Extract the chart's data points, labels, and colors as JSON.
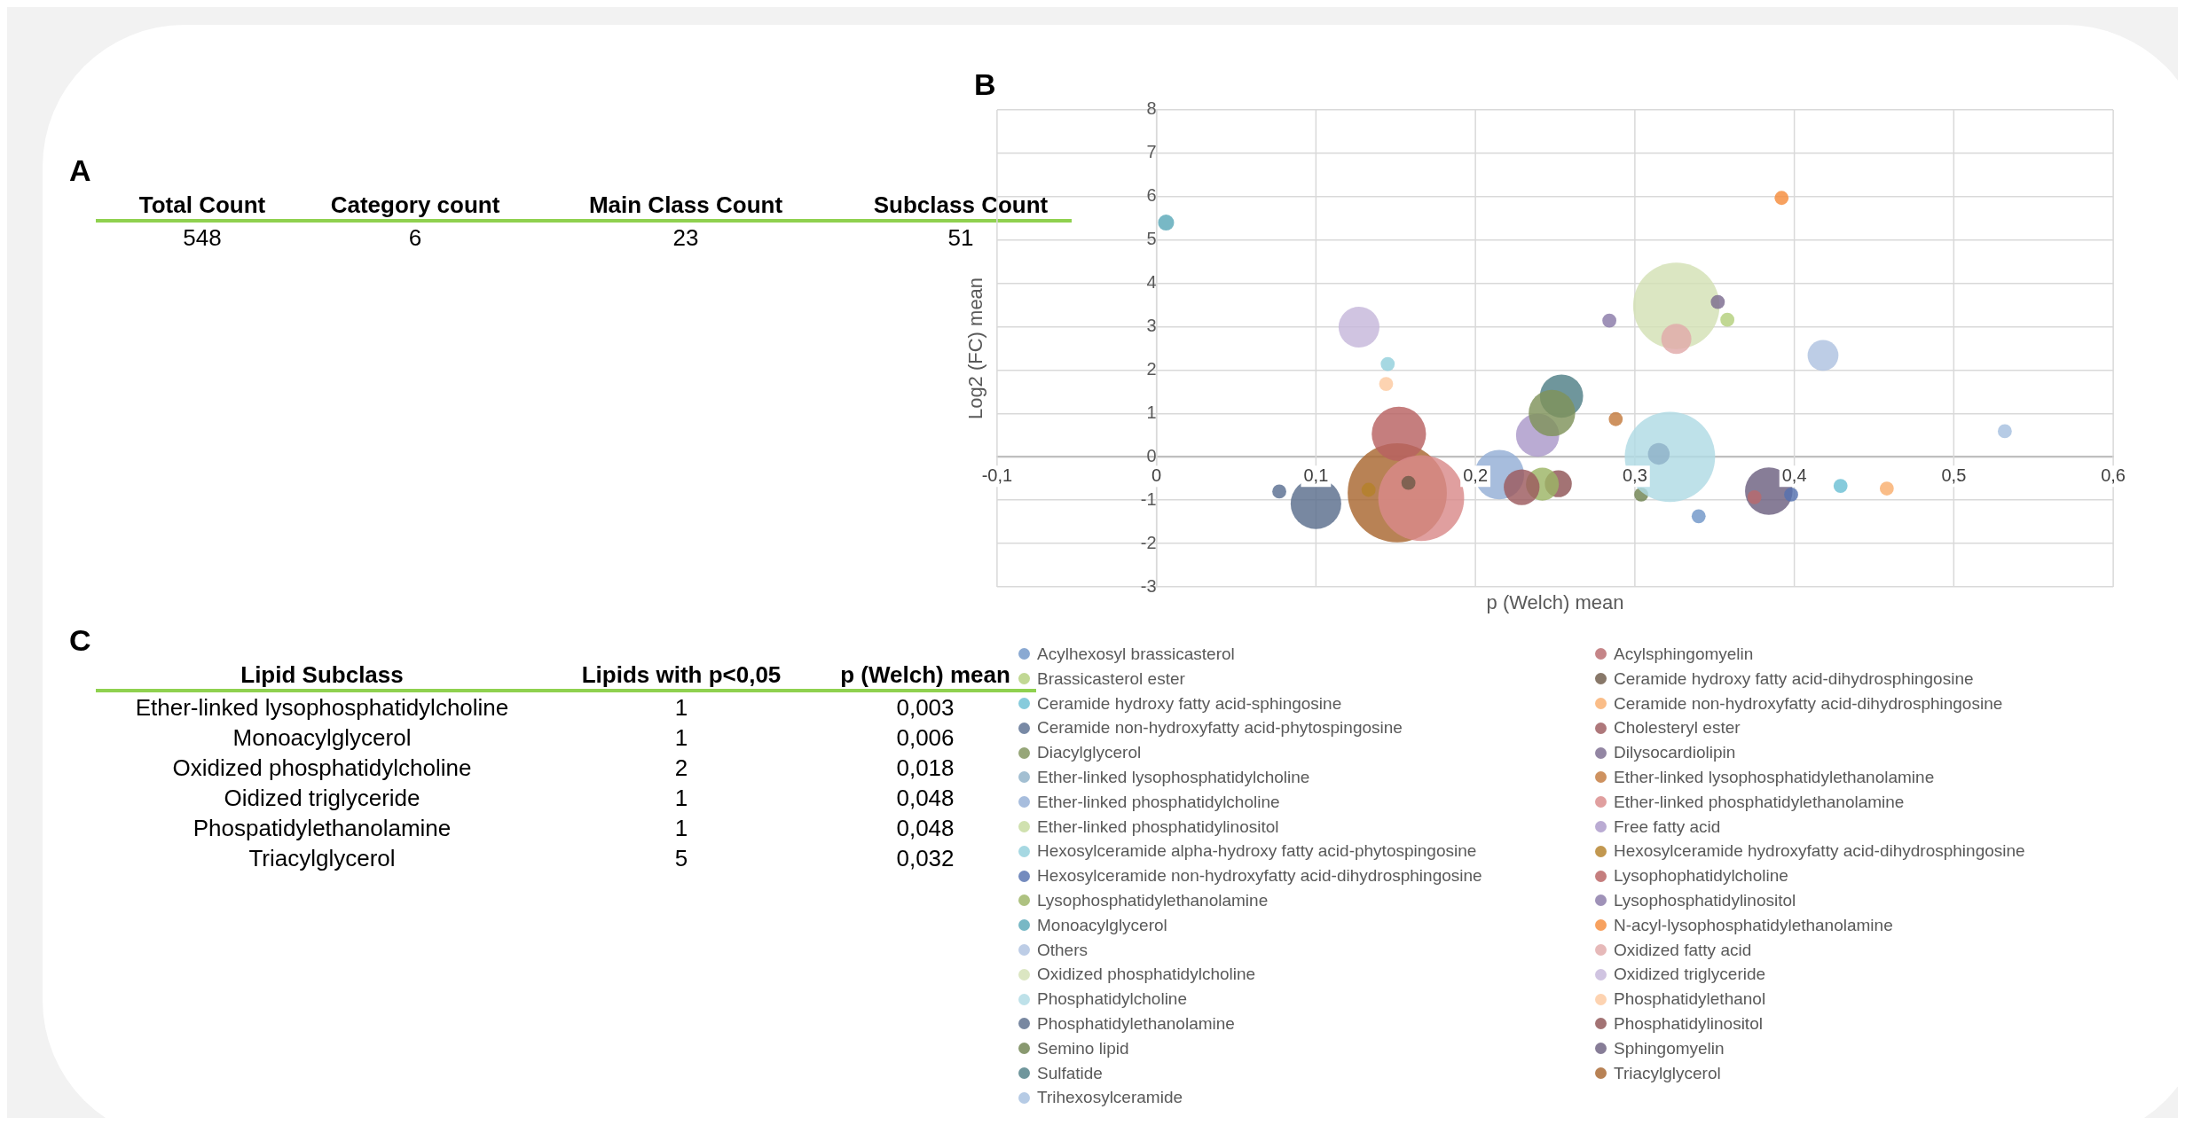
{
  "chart_data": [
    {
      "type": "other",
      "title": "A",
      "categories": [
        "Total Count",
        "Category count",
        "Main Class Count",
        "Subclass Count"
      ],
      "cell_labels": [
        [
          "548",
          "6",
          "23",
          "51"
        ]
      ]
    },
    {
      "type": "bubble",
      "title": "B",
      "xlabel": "p (Welch) mean",
      "ylabel": "Log2 (FC) mean",
      "xlim": [
        -0.1,
        0.6
      ],
      "xticks": [
        {
          "value": -0.1,
          "label": "-0,1"
        },
        0,
        {
          "value": 0.1,
          "label": "0,1"
        },
        {
          "value": 0.2,
          "label": "0,2"
        },
        {
          "value": 0.3,
          "label": "0,3"
        },
        {
          "value": 0.4,
          "label": "0,4"
        },
        {
          "value": 0.5,
          "label": "0,5"
        },
        {
          "value": 0.6,
          "label": "0,6"
        }
      ],
      "ylim": [
        -3,
        8
      ],
      "yticks": [
        -3,
        -2,
        -1,
        0,
        1,
        2,
        3,
        4,
        5,
        6,
        7,
        8
      ],
      "grid": true,
      "legend": "bottom",
      "series": [
        {
          "name": "Acylhexosyl brassicasterol",
          "color": "#7096c8",
          "x": [
            0.34
          ],
          "values": [
            -1.37
          ],
          "sizes": [
            0.02
          ]
        },
        {
          "name": "Acylsphingomyelin",
          "color": "#b86a6e",
          "x": [
            0.375
          ],
          "values": [
            -0.93
          ],
          "sizes": [
            0.02
          ]
        },
        {
          "name": "Brassicasterol ester",
          "color": "#b3cf7c",
          "x": [
            0.358
          ],
          "values": [
            3.16
          ],
          "sizes": [
            0.02
          ]
        },
        {
          "name": "Ceramide hydroxy fatty acid-dihydrosphingosine",
          "color": "#6e5a48",
          "x": [
            0.158
          ],
          "values": [
            -0.6
          ],
          "sizes": [
            0.02
          ]
        },
        {
          "name": "Ceramide hydroxy fatty acid-sphingosine",
          "color": "#6bc0d4",
          "x": [
            0.429
          ],
          "values": [
            -0.67
          ],
          "sizes": [
            0.02
          ]
        },
        {
          "name": "Ceramide non-hydroxyfatty acid-dihydrosphingosine",
          "color": "#f9ae6e",
          "x": [
            0.458
          ],
          "values": [
            -0.73
          ],
          "sizes": [
            0.02
          ]
        },
        {
          "name": "Ceramide non-hydroxyfatty acid-phytospingosine",
          "color": "#5a6f91",
          "x": [
            0.077
          ],
          "values": [
            -0.8
          ],
          "sizes": [
            0.02
          ]
        },
        {
          "name": "Cholesteryl ester",
          "color": "#9c5a5e",
          "x": [
            0.229
          ],
          "values": [
            -0.7
          ],
          "sizes": [
            0.13
          ]
        },
        {
          "name": "Diacylglycerol",
          "color": "#7f925a",
          "x": [
            0.248
          ],
          "values": [
            1.01
          ],
          "sizes": [
            0.22
          ]
        },
        {
          "name": "Dilysocardiolipin",
          "color": "#7b6b8f",
          "x": [
            0.352
          ],
          "values": [
            3.57
          ],
          "sizes": [
            0.02
          ]
        },
        {
          "name": "Ether-linked lysophosphatidylcholine",
          "color": "#8fb1c8",
          "x": [
            0.315
          ],
          "values": [
            0.07
          ],
          "sizes": [
            0.048
          ]
        },
        {
          "name": "Ether-linked lysophosphatidylethanolamine",
          "color": "#c37a3d",
          "x": [
            0.288
          ],
          "values": [
            0.87
          ],
          "sizes": [
            0.02
          ]
        },
        {
          "name": "Ether-linked phosphatidylcholine",
          "color": "#94afd6",
          "x": [
            0.215
          ],
          "values": [
            -0.41
          ],
          "sizes": [
            0.25
          ]
        },
        {
          "name": "Ether-linked phosphatidylethanolamine",
          "color": "#d98a8a",
          "x": [
            0.166
          ],
          "values": [
            -0.95
          ],
          "sizes": [
            0.75
          ]
        },
        {
          "name": "Ether-linked phosphatidylinositol",
          "color": "#c6da9d",
          "x": [
            null
          ],
          "values": [
            null
          ],
          "sizes": [
            null
          ]
        },
        {
          "name": "Free fatty acid",
          "color": "#ab99c9",
          "x": [
            0.239
          ],
          "values": [
            0.5
          ],
          "sizes": [
            0.19
          ]
        },
        {
          "name": "Hexosylceramide alpha-hydroxy fatty acid-phytospingosine",
          "color": "#92d0dc",
          "x": [
            0.145
          ],
          "values": [
            2.14
          ],
          "sizes": [
            0.02
          ]
        },
        {
          "name": "Hexosylceramide hydroxyfatty acid-dihydrosphingosine",
          "color": "#b5812a",
          "x": [
            0.133
          ],
          "values": [
            -0.76
          ],
          "sizes": [
            0.02
          ]
        },
        {
          "name": "Hexosylceramide non-hydroxyfatty acid-dihydrosphingosine",
          "color": "#5571b0",
          "x": [
            0.398
          ],
          "values": [
            -0.87
          ],
          "sizes": [
            0.02
          ]
        },
        {
          "name": "Lysophophatidylcholine",
          "color": "#b86161",
          "x": [
            0.152
          ],
          "values": [
            0.53
          ],
          "sizes": [
            0.3
          ]
        },
        {
          "name": "Lysophosphatidylethanolamine",
          "color": "#9cb565",
          "x": [
            0.242
          ],
          "values": [
            -0.63
          ],
          "sizes": [
            0.11
          ]
        },
        {
          "name": "Lysophosphatidylinositol",
          "color": "#8a7aa8",
          "x": [
            0.284
          ],
          "values": [
            3.14
          ],
          "sizes": [
            0.02
          ]
        },
        {
          "name": "Monoacylglycerol",
          "color": "#5aa8b8",
          "x": [
            0.006
          ],
          "values": [
            5.4
          ],
          "sizes": [
            0.026
          ]
        },
        {
          "name": "N-acyl-lysophosphatidylethanolamine",
          "color": "#f58c3c",
          "x": [
            0.392
          ],
          "values": [
            5.97
          ],
          "sizes": [
            0.02
          ]
        },
        {
          "name": "Others",
          "color": "#aec2e0",
          "x": [
            0.418
          ],
          "values": [
            2.34
          ],
          "sizes": [
            0.097
          ]
        },
        {
          "name": "Oxidized fatty acid",
          "color": "#e1aaaa",
          "x": [
            0.326
          ],
          "values": [
            2.72
          ],
          "sizes": [
            0.092
          ]
        },
        {
          "name": "Oxidized phosphatidylcholine",
          "color": "#d3e1b4",
          "x": [
            0.326
          ],
          "values": [
            3.48
          ],
          "sizes": [
            0.76
          ]
        },
        {
          "name": "Oxidized triglyceride",
          "color": "#c6b7da",
          "x": [
            0.127
          ],
          "values": [
            2.99
          ],
          "sizes": [
            0.17
          ]
        },
        {
          "name": "Phosphatidylcholine",
          "color": "#b0dbe4",
          "x": [
            0.322
          ],
          "values": [
            0.0
          ],
          "sizes": [
            0.83
          ]
        },
        {
          "name": "Phosphatidylethanol",
          "color": "#fcc9a0",
          "x": [
            0.144
          ],
          "values": [
            1.68
          ],
          "sizes": [
            0.02
          ]
        },
        {
          "name": "Phosphatidylethanolamine",
          "color": "#5a6e8c",
          "x": [
            0.1
          ],
          "values": [
            -1.08
          ],
          "sizes": [
            0.26
          ]
        },
        {
          "name": "Phosphatidylinositol",
          "color": "#8f5456",
          "x": [
            0.252
          ],
          "values": [
            -0.62
          ],
          "sizes": [
            0.074
          ]
        },
        {
          "name": "Semino lipid",
          "color": "#6f8351",
          "x": [
            0.304
          ],
          "values": [
            -0.87
          ],
          "sizes": [
            0.02
          ]
        },
        {
          "name": "Sphingomyelin",
          "color": "#6d6080",
          "x": [
            0.384
          ],
          "values": [
            -0.79
          ],
          "sizes": [
            0.23
          ]
        },
        {
          "name": "Sulfatide",
          "color": "#4f7f86",
          "x": [
            0.254
          ],
          "values": [
            1.4
          ],
          "sizes": [
            0.19
          ]
        },
        {
          "name": "Triacylglycerol",
          "color": "#a8662f",
          "x": [
            0.151
          ],
          "values": [
            -0.83
          ],
          "sizes": [
            1
          ]
        },
        {
          "name": "Trihexosylceramide",
          "color": "#a6bfdf",
          "x": [
            0.532
          ],
          "values": [
            0.59
          ],
          "sizes": [
            0.02
          ]
        }
      ]
    },
    {
      "type": "other",
      "title": "C",
      "categories": [
        "Lipid Subclass",
        "Lipids with p<0,05",
        "p (Welch) mean"
      ],
      "cell_labels": [
        [
          "Ether-linked lysophosphatidylcholine",
          "1",
          "0,003"
        ],
        [
          "Monoacylglycerol",
          "1",
          "0,006"
        ],
        [
          "Oxidized phosphatidylcholine",
          "2",
          "0,018"
        ],
        [
          "Oidized triglyceride",
          "1",
          "0,048"
        ],
        [
          "Phospatidylethanolamine",
          "1",
          "0,048"
        ],
        [
          "Triacylglycerol",
          "5",
          "0,032"
        ]
      ]
    }
  ]
}
